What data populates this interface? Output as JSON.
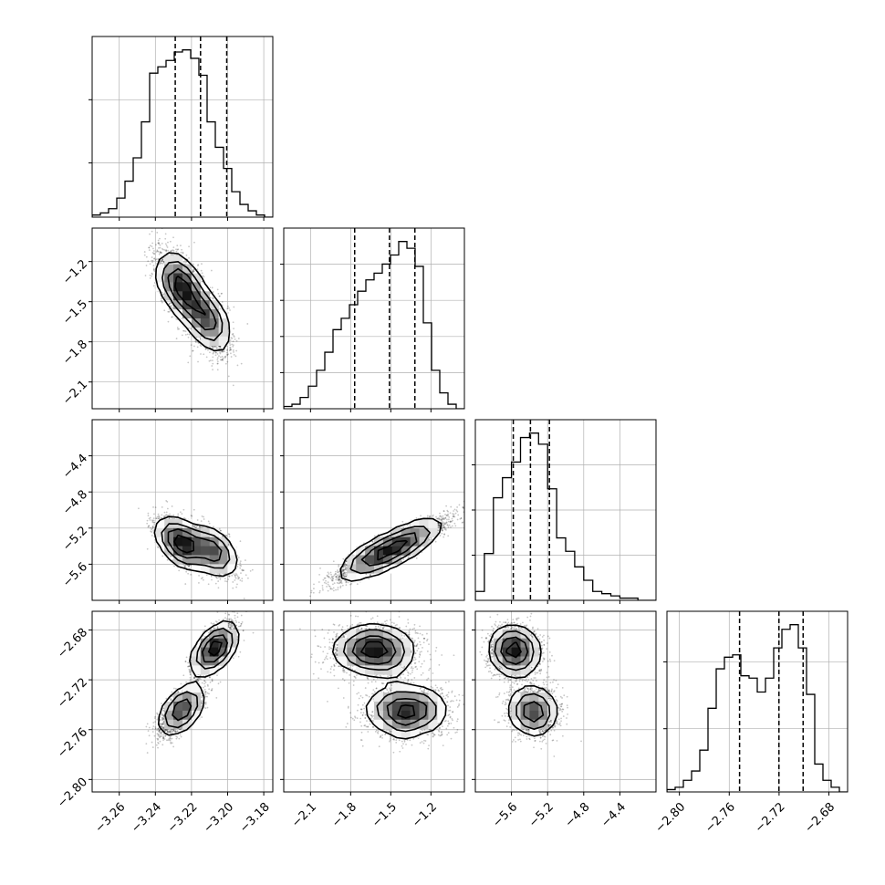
{
  "chart_data": {
    "type": "corner",
    "description_params": 4,
    "grid": true,
    "params": [
      {
        "range": [
          -3.275,
          -3.175
        ],
        "ticks": [
          -3.26,
          -3.24,
          -3.22,
          -3.2,
          -3.18
        ],
        "tick_labels": [
          "−3.26",
          "−3.24",
          "−3.22",
          "−3.20",
          "−3.18"
        ],
        "quantiles": [
          -3.229,
          -3.215,
          -3.2005
        ],
        "hist_counts": [
          1,
          2,
          4,
          9,
          17,
          28,
          45,
          68,
          71,
          74,
          78,
          79,
          75,
          67,
          45,
          33,
          23,
          12,
          6,
          3,
          1,
          0
        ]
      },
      {
        "range": [
          -2.3,
          -0.95
        ],
        "ticks": [
          -2.1,
          -1.8,
          -1.5,
          -1.2
        ],
        "tick_labels": [
          "−2.1",
          "−1.8",
          "−1.5",
          "−1.2"
        ],
        "quantiles": [
          -1.77,
          -1.51,
          -1.32
        ],
        "hist_counts": [
          1,
          2,
          5,
          10,
          17,
          25,
          35,
          40,
          46,
          52,
          57,
          60,
          64,
          68,
          74,
          71,
          63,
          38,
          17,
          7,
          2,
          0
        ]
      },
      {
        "range": [
          -6.0,
          -4.0
        ],
        "ticks": [
          -5.6,
          -5.2,
          -4.8,
          -4.4
        ],
        "tick_labels": [
          "−5.6",
          "−5.2",
          "−4.8",
          "−4.4"
        ],
        "quantiles": [
          -5.58,
          -5.39,
          -5.18
        ],
        "hist_counts": [
          4,
          21,
          46,
          55,
          62,
          73,
          75,
          70,
          50,
          28,
          22,
          15,
          9,
          4,
          3,
          2,
          1,
          1,
          0,
          0
        ]
      },
      {
        "range": [
          -2.81,
          -2.665
        ],
        "ticks": [
          -2.8,
          -2.76,
          -2.72,
          -2.68
        ],
        "tick_labels": [
          "−2.80",
          "−2.76",
          "−2.72",
          "−2.68"
        ],
        "quantiles": [
          -2.7517,
          -2.7201,
          -2.7007
        ],
        "hist_counts": [
          1,
          2,
          5,
          9,
          18,
          36,
          53,
          58,
          59,
          50,
          49,
          43,
          49,
          62,
          70,
          72,
          62,
          42,
          12,
          5,
          2,
          0
        ]
      }
    ],
    "joint_panels": [
      {
        "row": 1,
        "col": 0,
        "cov": [
          [
            0.000105,
            -0.0012
          ],
          [
            -0.0012,
            0.042
          ]
        ],
        "modes": [
          {
            "x": -3.226,
            "y": -1.38,
            "w": 0.55
          },
          {
            "x": -3.212,
            "y": -1.63,
            "w": 0.45
          }
        ]
      },
      {
        "row": 2,
        "col": 0,
        "cov": [
          [
            0.000105,
            -0.0013
          ],
          [
            -0.0013,
            0.046
          ]
        ],
        "modes": [
          {
            "x": -3.226,
            "y": -5.36,
            "w": 0.55
          },
          {
            "x": -3.208,
            "y": -5.46,
            "w": 0.45
          }
        ]
      },
      {
        "row": 2,
        "col": 1,
        "cov": [
          [
            0.06,
            0.045
          ],
          [
            0.045,
            0.046
          ]
        ],
        "modes": [
          {
            "x": -1.38,
            "y": -5.35,
            "w": 0.5
          },
          {
            "x": -1.62,
            "y": -5.52,
            "w": 0.5
          }
        ]
      },
      {
        "row": 3,
        "col": 0,
        "cov": [
          [
            9e-05,
            0.0001
          ],
          [
            0.0001,
            0.00025
          ]
        ],
        "modes": [
          {
            "x": -3.207,
            "y": -2.695,
            "w": 0.55
          },
          {
            "x": -3.226,
            "y": -2.745,
            "w": 0.45
          }
        ]
      },
      {
        "row": 3,
        "col": 1,
        "cov": [
          [
            0.06,
            -0.0001
          ],
          [
            -0.0001,
            0.00025
          ]
        ],
        "modes": [
          {
            "x": -1.62,
            "y": -2.696,
            "w": 0.5
          },
          {
            "x": -1.38,
            "y": -2.745,
            "w": 0.5
          }
        ]
      },
      {
        "row": 3,
        "col": 2,
        "cov": [
          [
            0.046,
            -0.0002
          ],
          [
            -0.0002,
            0.00025
          ]
        ],
        "modes": [
          {
            "x": -5.56,
            "y": -2.697,
            "w": 0.55
          },
          {
            "x": -5.36,
            "y": -2.745,
            "w": 0.45
          }
        ]
      }
    ],
    "colors": {
      "line": "#000000",
      "grid": "#b0b0b0",
      "points": "#000000"
    }
  }
}
